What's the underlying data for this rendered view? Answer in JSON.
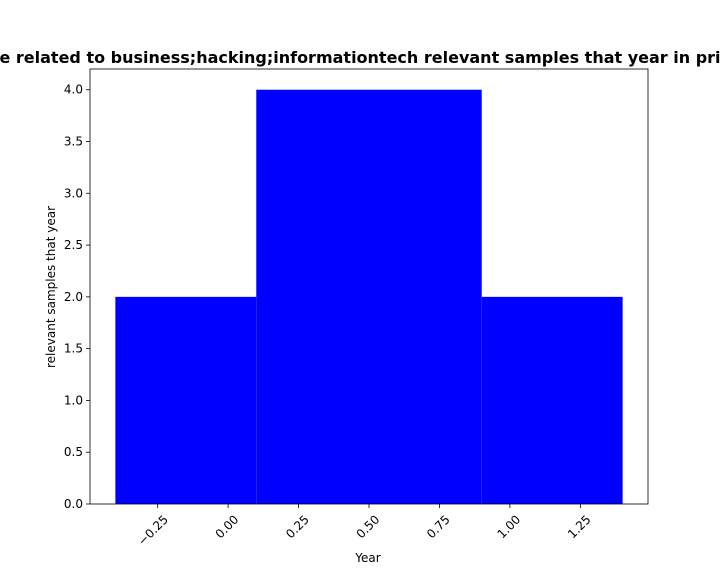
{
  "chart_data": {
    "type": "bar",
    "title": "e related to business;hacking;informationtech relevant samples that year in pri",
    "xlabel": "Year",
    "ylabel": "relevant samples that year",
    "bars": [
      {
        "x_start": -0.4,
        "x_end": 0.1,
        "value": 2
      },
      {
        "x_start": 0.1,
        "x_end": 0.9,
        "value": 4
      },
      {
        "x_start": 0.9,
        "x_end": 1.4,
        "value": 2
      }
    ],
    "bar_color": "#0000ff",
    "xlim": [
      -0.49,
      1.49
    ],
    "ylim": [
      0,
      4.2
    ],
    "x_ticks": [
      -0.25,
      0.0,
      0.25,
      0.5,
      0.75,
      1.0,
      1.25
    ],
    "x_tick_labels": [
      "−0.25",
      "0.00",
      "0.25",
      "0.50",
      "0.75",
      "1.00",
      "1.25"
    ],
    "y_ticks": [
      0.0,
      0.5,
      1.0,
      1.5,
      2.0,
      2.5,
      3.0,
      3.5,
      4.0
    ],
    "y_tick_labels": [
      "0.0",
      "0.5",
      "1.0",
      "1.5",
      "2.0",
      "2.5",
      "3.0",
      "3.5",
      "4.0"
    ],
    "grid": false,
    "legend": "none"
  }
}
